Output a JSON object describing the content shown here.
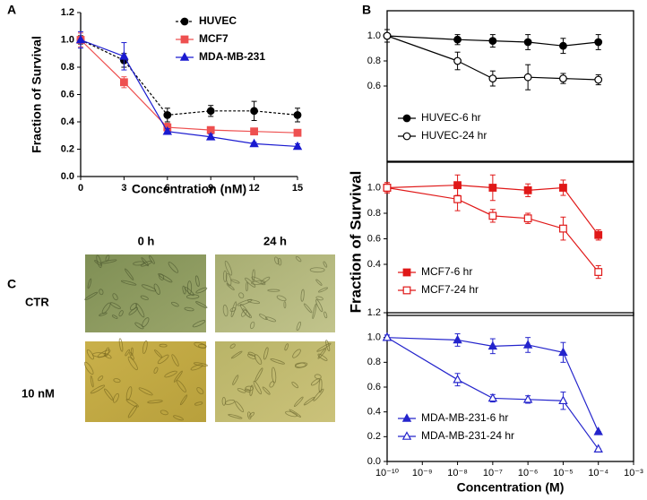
{
  "chart_data": [
    {
      "type": "line",
      "xlabel": "Concentration (nM)",
      "ylabel": "Fraction of Survival",
      "x": [
        0,
        3,
        6,
        9,
        12,
        15
      ],
      "xlim": [
        0,
        15
      ],
      "xticks": [
        0,
        3,
        6,
        9,
        12,
        15
      ],
      "ylim": [
        0,
        1.2
      ],
      "yticks": [
        {
          "value": 0,
          "label": "0.0"
        },
        0.2,
        0.4,
        0.6,
        0.8,
        {
          "value": 1,
          "label": "1.0"
        },
        1.2
      ],
      "legend": "upper right",
      "series": [
        {
          "name": "HUVEC",
          "color": "#000000",
          "marker": "circle",
          "filled": true,
          "dash": true,
          "values": [
            1.0,
            0.85,
            0.45,
            0.48,
            0.48,
            0.45
          ],
          "errors": [
            0.03,
            0.05,
            0.05,
            0.04,
            0.07,
            0.05
          ]
        },
        {
          "name": "MCF7",
          "color": "#ee5050",
          "marker": "square",
          "filled": true,
          "dash": false,
          "values": [
            1.0,
            0.69,
            0.36,
            0.34,
            0.33,
            0.32
          ],
          "errors": [
            0.05,
            0.04,
            0.03,
            0.02,
            0.02,
            0.02
          ]
        },
        {
          "name": "MDA-MB-231",
          "color": "#1a1ad0",
          "marker": "triangle",
          "filled": true,
          "dash": false,
          "values": [
            1.0,
            0.88,
            0.33,
            0.29,
            0.24,
            0.22
          ],
          "errors": [
            0.06,
            0.1,
            0.02,
            0.02,
            0.01,
            0.02
          ]
        }
      ]
    },
    {
      "type": "line",
      "xscale": "log",
      "x": [
        1e-10,
        1e-08,
        1e-07,
        1e-06,
        1e-05,
        0.0001
      ],
      "xlim": [
        1e-10,
        0.001
      ],
      "ylim": [
        0,
        1.2
      ],
      "yticks": [
        0.6,
        0.8,
        {
          "value": 1,
          "label": "1.0"
        }
      ],
      "legend": "lower left",
      "series": [
        {
          "name": "HUVEC-6 hr",
          "color": "#000000",
          "marker": "circle",
          "filled": true,
          "dash": false,
          "values": [
            1.0,
            0.97,
            0.96,
            0.95,
            0.92,
            0.95
          ],
          "errors": [
            0.05,
            0.04,
            0.05,
            0.06,
            0.06,
            0.06
          ]
        },
        {
          "name": "HUVEC-24 hr",
          "color": "#000000",
          "marker": "circle",
          "filled": false,
          "dash": false,
          "values": [
            1.0,
            0.8,
            0.66,
            0.67,
            0.66,
            0.65
          ],
          "errors": [
            0.05,
            0.07,
            0.06,
            0.1,
            0.04,
            0.04
          ]
        }
      ]
    },
    {
      "type": "line",
      "xscale": "log",
      "ylabel": "Fraction of Survival",
      "x": [
        1e-10,
        1e-08,
        1e-07,
        1e-06,
        1e-05,
        0.0001
      ],
      "xlim": [
        1e-10,
        0.001
      ],
      "ylim": [
        0,
        1.2
      ],
      "yticks": [
        0.4,
        0.6,
        0.8,
        {
          "value": 1,
          "label": "1.0"
        }
      ],
      "legend": "lower left",
      "series": [
        {
          "name": "MCF7-6 hr",
          "color": "#e01818",
          "marker": "square",
          "filled": true,
          "dash": false,
          "values": [
            1.0,
            1.02,
            1.0,
            0.98,
            1.0,
            0.63
          ],
          "errors": [
            0.04,
            0.08,
            0.1,
            0.05,
            0.06,
            0.04
          ]
        },
        {
          "name": "MCF7-24 hr",
          "color": "#e01818",
          "marker": "square",
          "filled": false,
          "dash": false,
          "values": [
            1.0,
            0.91,
            0.78,
            0.76,
            0.68,
            0.34
          ],
          "errors": [
            0.04,
            0.09,
            0.05,
            0.04,
            0.09,
            0.05
          ]
        }
      ]
    },
    {
      "type": "line",
      "xscale": "log",
      "xlabel": "Concentration (M)",
      "x": [
        1e-10,
        1e-08,
        1e-07,
        1e-06,
        1e-05,
        0.0001
      ],
      "xlim": [
        1e-10,
        0.001
      ],
      "xticks": [
        {
          "value": 1e-10,
          "label": "10⁻¹⁰"
        },
        {
          "value": 1e-09,
          "label": "10⁻⁹"
        },
        {
          "value": 1e-08,
          "label": "10⁻⁸"
        },
        {
          "value": 1e-07,
          "label": "10⁻⁷"
        },
        {
          "value": 1e-06,
          "label": "10⁻⁶"
        },
        {
          "value": 1e-05,
          "label": "10⁻⁵"
        },
        {
          "value": 0.0001,
          "label": "10⁻⁴"
        },
        {
          "value": 0.001,
          "label": "10⁻³"
        }
      ],
      "ylim": [
        0,
        1.2
      ],
      "yticks": [
        {
          "value": 0,
          "label": "0.0"
        },
        0.2,
        0.4,
        0.6,
        0.8,
        {
          "value": 1,
          "label": "1.0"
        },
        1.2
      ],
      "legend": "lower left",
      "series": [
        {
          "name": "MDA-MB-231-6 hr",
          "color": "#2424cc",
          "marker": "triangle",
          "filled": true,
          "dash": false,
          "values": [
            1.0,
            0.98,
            0.93,
            0.94,
            0.88,
            0.24
          ],
          "errors": [
            0.02,
            0.05,
            0.06,
            0.06,
            0.08,
            0
          ]
        },
        {
          "name": "MDA-MB-231-24 hr",
          "color": "#2424cc",
          "marker": "triangle",
          "filled": false,
          "dash": false,
          "values": [
            1.0,
            0.66,
            0.51,
            0.5,
            0.49,
            0.1
          ],
          "errors": [
            0.02,
            0.05,
            0.03,
            0.03,
            0.07,
            0
          ]
        }
      ]
    }
  ],
  "figure": {
    "panel_labels": [
      "A",
      "B",
      "C"
    ],
    "image_grid": {
      "columns": [
        "0 h",
        "24 h"
      ],
      "rows": [
        "CTR",
        "10 nM"
      ]
    }
  }
}
